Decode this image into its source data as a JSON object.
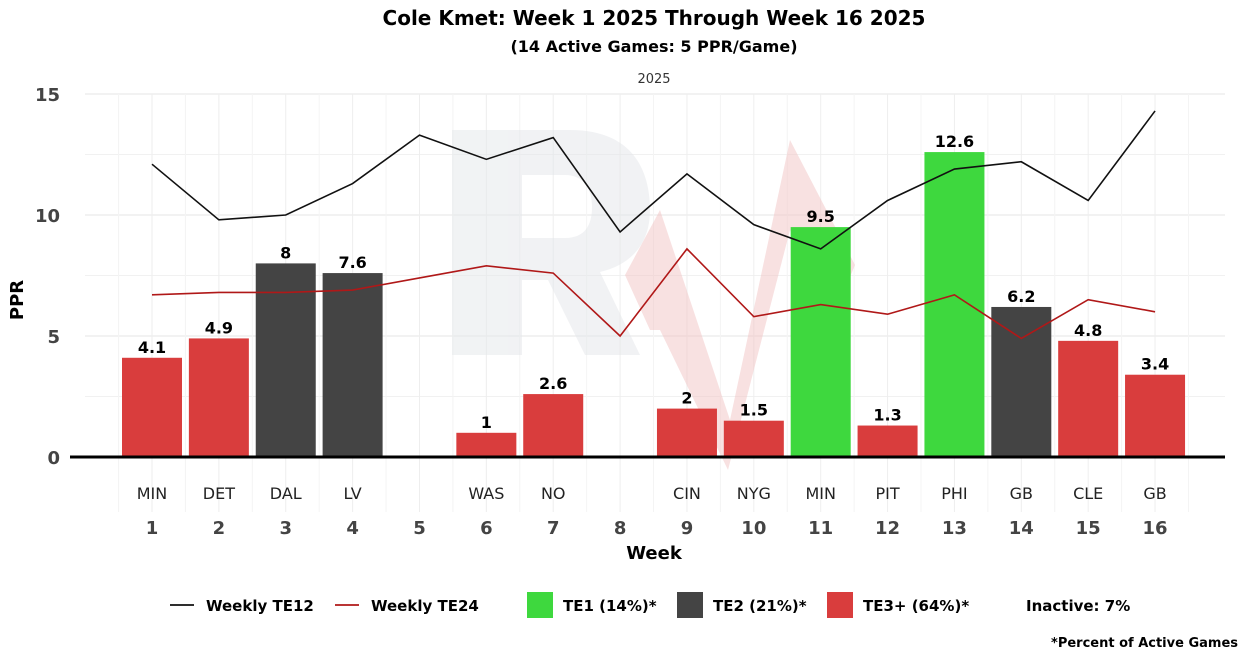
{
  "chart_data": {
    "type": "bar",
    "title": "Cole Kmet: Week 1 2025 Through Week 16 2025",
    "subtitle": "(14 Active Games: 5 PPR/Game)",
    "facet_label": "2025",
    "xlabel": "Week",
    "ylabel": "PPR",
    "ylim": [
      0,
      15
    ],
    "yticks": [
      0,
      5,
      10,
      15
    ],
    "weeks": [
      1,
      2,
      3,
      4,
      5,
      6,
      7,
      8,
      9,
      10,
      11,
      12,
      13,
      14,
      15,
      16
    ],
    "opponents": [
      "MIN",
      "DET",
      "DAL",
      "LV",
      "",
      "WAS",
      "NO",
      "",
      "CIN",
      "NYG",
      "MIN",
      "PIT",
      "PHI",
      "GB",
      "CLE",
      "GB"
    ],
    "values": [
      4.1,
      4.9,
      8,
      7.6,
      null,
      1,
      2.6,
      null,
      2,
      1.5,
      9.5,
      1.3,
      12.6,
      6.2,
      4.8,
      3.4
    ],
    "tiers": [
      "TE3+",
      "TE3+",
      "TE2",
      "TE2",
      null,
      "TE3+",
      "TE3+",
      null,
      "TE3+",
      "TE3+",
      "TE1",
      "TE3+",
      "TE1",
      "TE2",
      "TE3+",
      "TE3+"
    ],
    "series": [
      {
        "name": "Weekly TE12",
        "color": "#111111",
        "values": [
          12.1,
          9.8,
          10.0,
          11.3,
          13.3,
          12.3,
          13.2,
          9.3,
          11.7,
          9.6,
          8.6,
          10.6,
          11.9,
          12.2,
          10.6,
          14.3
        ]
      },
      {
        "name": "Weekly TE24",
        "color": "#b01818",
        "values": [
          6.7,
          6.8,
          6.8,
          6.9,
          7.4,
          7.9,
          7.6,
          5.0,
          8.6,
          5.8,
          6.3,
          5.9,
          6.7,
          4.9,
          6.5,
          6.0
        ]
      }
    ],
    "tier_colors": {
      "TE1": "#3ed83e",
      "TE2": "#444444",
      "TE3+": "#d93d3d"
    },
    "legend": {
      "position": "bottom",
      "items": [
        {
          "kind": "line",
          "label": "Weekly TE12",
          "color": "#111111"
        },
        {
          "kind": "line",
          "label": "Weekly TE24",
          "color": "#b01818"
        },
        {
          "kind": "box",
          "label": "TE1 (14%)*",
          "color": "#3ed83e"
        },
        {
          "kind": "box",
          "label": "TE2 (21%)*",
          "color": "#444444"
        },
        {
          "kind": "box",
          "label": "TE3+ (64%)*",
          "color": "#d93d3d"
        },
        {
          "kind": "text",
          "label": "Inactive: 7%"
        }
      ]
    },
    "footnote": "*Percent of Active Games",
    "grid": true
  }
}
